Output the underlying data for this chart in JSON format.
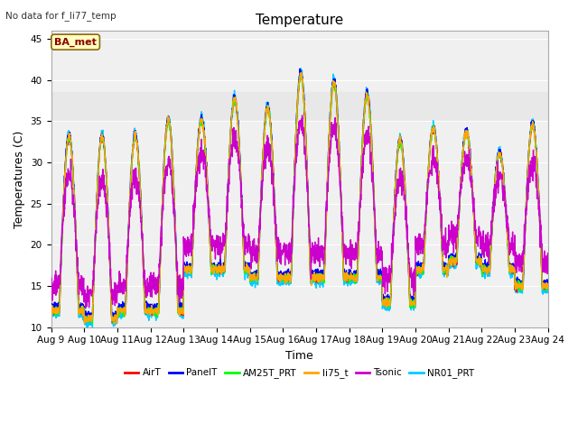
{
  "title": "Temperature",
  "ylabel": "Temperatures (C)",
  "xlabel": "Time",
  "note": "No data for f_li77_temp",
  "ba_met_label": "BA_met",
  "ylim": [
    10,
    46
  ],
  "yticks": [
    10,
    15,
    20,
    25,
    30,
    35,
    40,
    45
  ],
  "xstart": 9,
  "xend": 24,
  "xtick_labels": [
    "Aug 9",
    "Aug 10",
    "Aug 11",
    "Aug 12",
    "Aug 13",
    "Aug 14",
    "Aug 15",
    "Aug 16",
    "Aug 17",
    "Aug 18",
    "Aug 19",
    "Aug 20",
    "Aug 21",
    "Aug 22",
    "Aug 23",
    "Aug 24"
  ],
  "series": {
    "AirT": {
      "color": "#ff0000",
      "zorder": 3
    },
    "PanelT": {
      "color": "#0000ff",
      "zorder": 4
    },
    "AM25T_PRT": {
      "color": "#00ff00",
      "zorder": 5
    },
    "li75_t": {
      "color": "#ffa500",
      "zorder": 6
    },
    "Tsonic": {
      "color": "#cc00cc",
      "zorder": 7
    },
    "NR01_PRT": {
      "color": "#00ccff",
      "zorder": 2
    }
  },
  "background_shade": {
    "ymin": 35,
    "ymax": 38.5,
    "color": "#e8e8e8"
  },
  "plot_bg": "#f0f0f0",
  "grid_color": "#ffffff",
  "title_fontsize": 11,
  "label_fontsize": 9,
  "tick_fontsize": 7.5
}
